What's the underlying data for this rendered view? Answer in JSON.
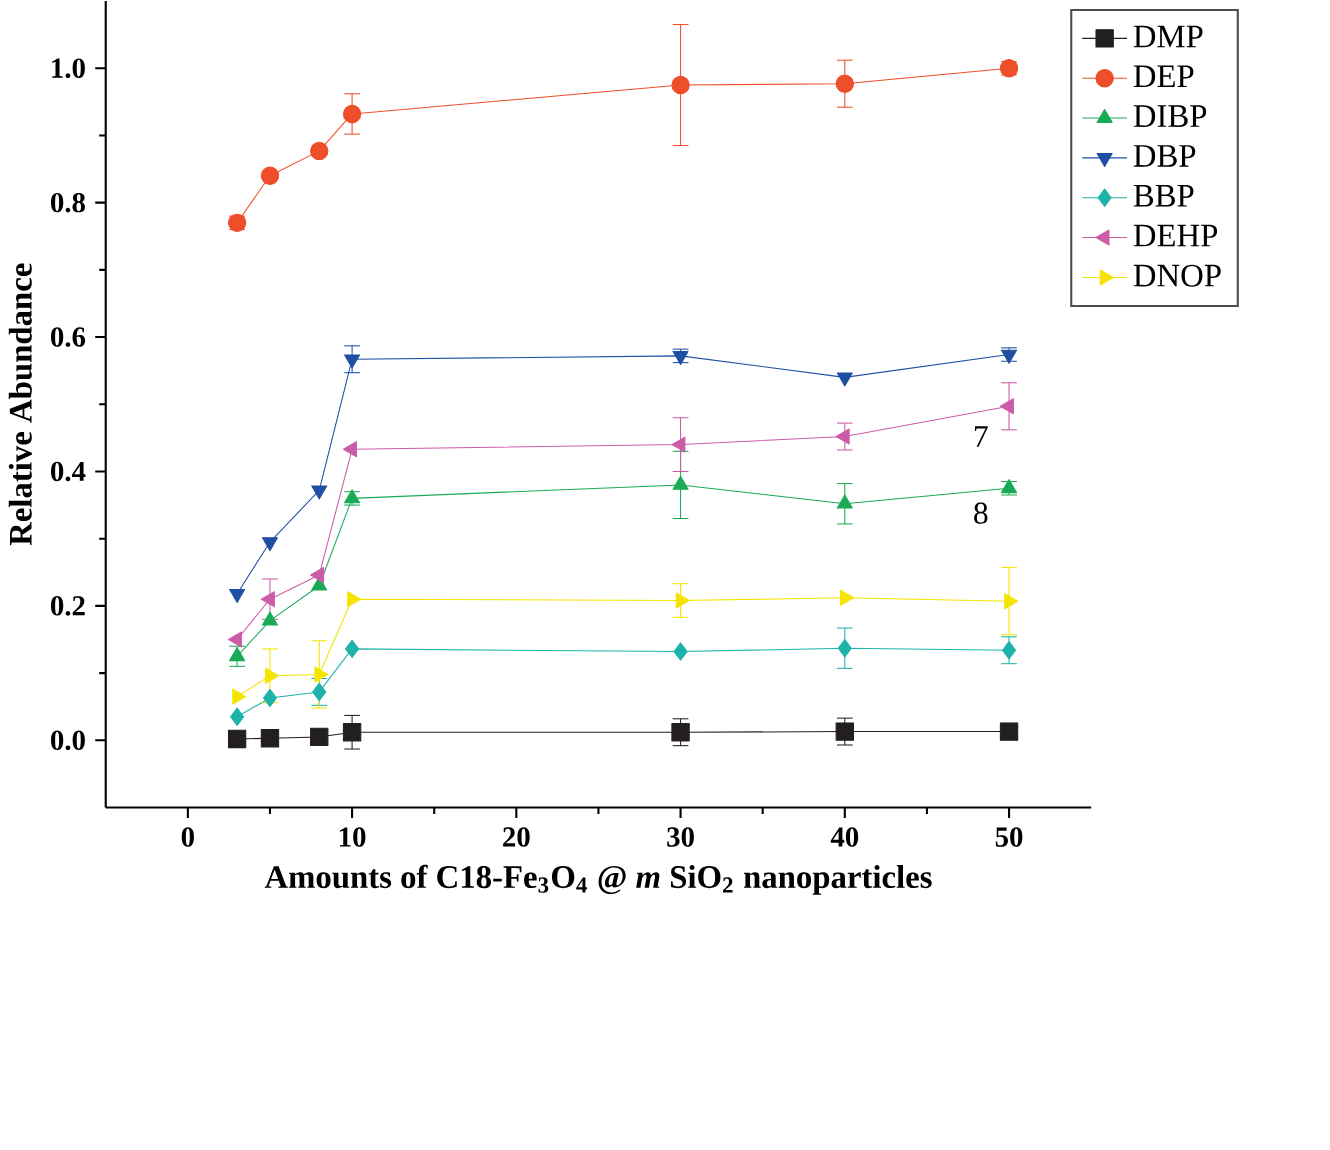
{
  "chart_data": {
    "type": "line",
    "xlabel": "Amounts of C18-Fe$_{3}$O$_{4}$ @ *m* SiO$_{2}$ nanoparticles",
    "ylabel": "Relative Abundance",
    "x": [
      3,
      5,
      8,
      10,
      30,
      40,
      50
    ],
    "xlim": [
      -5,
      55
    ],
    "xticks": [
      0,
      10,
      20,
      30,
      40,
      50
    ],
    "ylim": [
      -0.1,
      1.1
    ],
    "yticks": [
      {
        "value": 0,
        "label": "0.0"
      },
      {
        "value": 0.2,
        "label": "0.2"
      },
      {
        "value": 0.4,
        "label": "0.4"
      },
      {
        "value": 0.6,
        "label": "0.6"
      },
      {
        "value": 0.8,
        "label": "0.8"
      },
      {
        "value": 1.0,
        "label": "1.0"
      }
    ],
    "legend": "top right",
    "grid": false,
    "line_style": "solid",
    "series": [
      {
        "name": "DMP",
        "color": "#231f20",
        "marker": "square",
        "values": [
          0.002,
          0.003,
          0.005,
          0.012,
          0.012,
          0.013,
          0.013
        ],
        "errors": [
          null,
          null,
          null,
          0.025,
          0.02,
          0.02,
          null
        ]
      },
      {
        "name": "DEP",
        "color": "#ef4e2a",
        "marker": "circle",
        "values": [
          0.77,
          0.84,
          0.877,
          0.932,
          0.975,
          0.977,
          1.0
        ],
        "errors": [
          0.01,
          null,
          null,
          0.03,
          0.09,
          0.035,
          0.01
        ]
      },
      {
        "name": "DIBP",
        "color": "#1aaa55",
        "marker": "triangle",
        "values": [
          0.125,
          0.178,
          0.23,
          0.36,
          0.38,
          0.352,
          0.375
        ],
        "errors": [
          0.015,
          null,
          null,
          0.01,
          0.05,
          0.03,
          0.01
        ]
      },
      {
        "name": "DBP",
        "color": "#1f4fa3",
        "marker": "triangle-down",
        "values": [
          0.218,
          0.295,
          0.372,
          0.567,
          0.572,
          0.54,
          0.574
        ],
        "errors": [
          null,
          null,
          null,
          0.02,
          0.01,
          null,
          0.01
        ]
      },
      {
        "name": "BBP",
        "color": "#1db3a8",
        "marker": "diamond",
        "values": [
          0.035,
          0.063,
          0.072,
          0.136,
          0.132,
          0.137,
          0.134
        ],
        "errors": [
          null,
          null,
          0.02,
          null,
          null,
          0.03,
          0.02
        ]
      },
      {
        "name": "DEHP",
        "color": "#cc5ca8",
        "marker": "triangle-left",
        "values": [
          0.15,
          0.21,
          0.246,
          0.433,
          0.44,
          0.452,
          0.497
        ],
        "errors": [
          null,
          0.03,
          null,
          null,
          0.04,
          0.02,
          0.035
        ]
      },
      {
        "name": "DNOP",
        "color": "#f5e400",
        "marker": "triangle-right",
        "values": [
          0.065,
          0.096,
          0.098,
          0.21,
          0.208,
          0.212,
          0.207
        ],
        "errors": [
          null,
          0.04,
          0.05,
          null,
          0.025,
          null,
          0.05
        ]
      }
    ],
    "annotations": [
      "7",
      "8"
    ]
  }
}
